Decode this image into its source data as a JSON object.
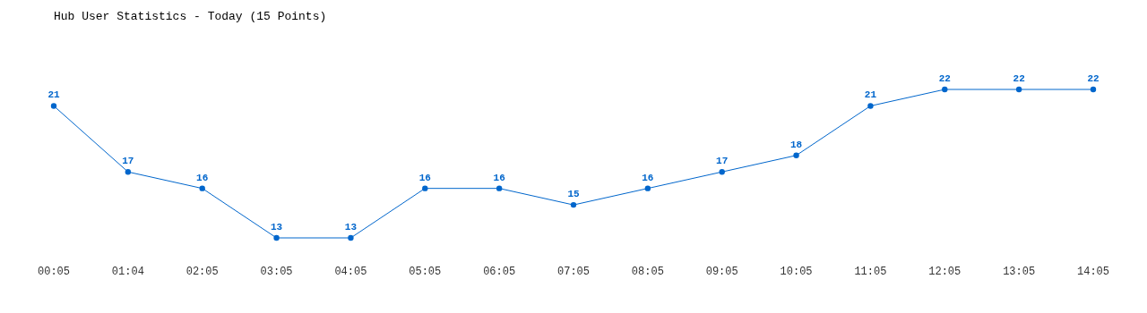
{
  "chart_data": {
    "type": "line",
    "title": "Hub User Statistics - Today (15 Points)",
    "categories": [
      "00:05",
      "01:04",
      "02:05",
      "03:05",
      "04:05",
      "05:05",
      "06:05",
      "07:05",
      "08:05",
      "09:05",
      "10:05",
      "11:05",
      "12:05",
      "13:05",
      "14:05"
    ],
    "values": [
      21,
      17,
      16,
      13,
      13,
      16,
      16,
      15,
      16,
      17,
      18,
      21,
      22,
      22,
      22
    ],
    "color": "#0066cc",
    "marker": "circle",
    "data_labels": true
  }
}
